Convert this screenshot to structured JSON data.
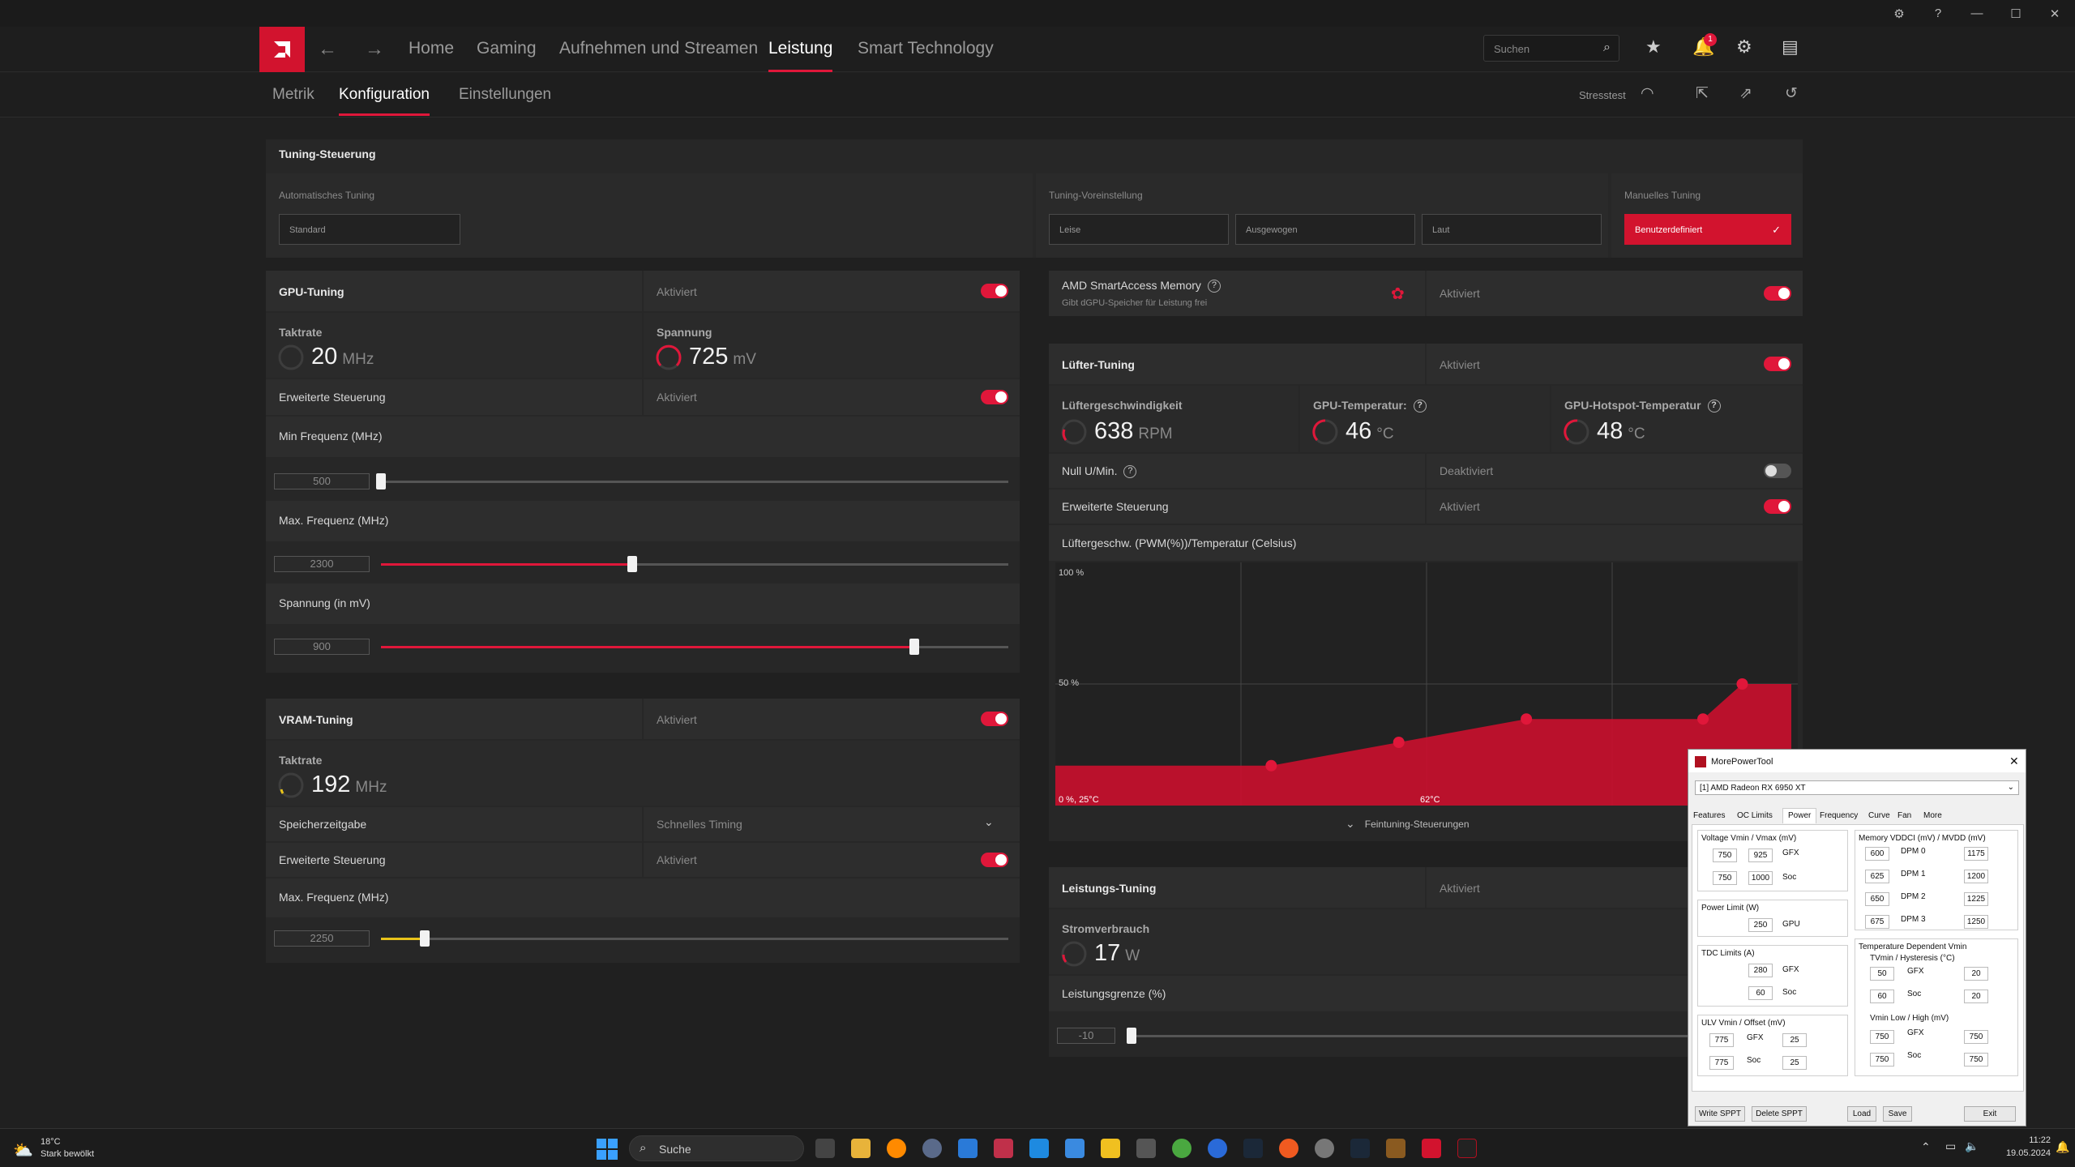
{
  "window": {
    "controls": [
      "⚙",
      "?",
      "—",
      "☐",
      "✕"
    ]
  },
  "nav": {
    "items": [
      "Home",
      "Gaming",
      "Aufnehmen und Streamen",
      "Leistung",
      "Smart Technology"
    ],
    "search_placeholder": "Suchen",
    "notification_count": "1"
  },
  "subnav": {
    "items": [
      "Metrik",
      "Konfiguration",
      "Einstellungen"
    ],
    "stresstest": "Stresstest"
  },
  "tuning_control": {
    "title": "Tuning-Steuerung",
    "auto_label": "Automatisches Tuning",
    "auto_value": "Standard",
    "preset_label": "Tuning-Voreinstellung",
    "presets": [
      "Leise",
      "Ausgewogen",
      "Laut"
    ],
    "manual_label": "Manuelles Tuning",
    "manual_value": "Benutzerdefiniert"
  },
  "gpu_tuning": {
    "title": "GPU-Tuning",
    "status": "Aktiviert",
    "clock_label": "Taktrate",
    "clock_value": "20",
    "clock_unit": "MHz",
    "voltage_label": "Spannung",
    "voltage_value": "725",
    "voltage_unit": "mV",
    "advanced_label": "Erweiterte Steuerung",
    "advanced_status": "Aktiviert",
    "min_freq_label": "Min Frequenz (MHz)",
    "min_freq": "500",
    "min_freq_fraction": 0.0,
    "max_freq_label": "Max. Frequenz (MHz)",
    "max_freq": "2300",
    "max_freq_fraction": 0.4,
    "voltage_mv_label": "Spannung (in mV)",
    "voltage_mv": "900",
    "voltage_mv_fraction": 0.85
  },
  "vram_tuning": {
    "title": "VRAM-Tuning",
    "status": "Aktiviert",
    "clock_label": "Taktrate",
    "clock_value": "192",
    "clock_unit": "MHz",
    "timing_label": "Speicherzeitgabe",
    "timing_value": "Schnelles Timing",
    "advanced_label": "Erweiterte Steuerung",
    "advanced_status": "Aktiviert",
    "max_freq_label": "Max. Frequenz (MHz)",
    "max_freq": "2250",
    "max_freq_fraction": 0.07
  },
  "sam": {
    "title": "AMD SmartAccess Memory",
    "subtitle": "Gibt dGPU-Speicher für Leistung frei",
    "status": "Aktiviert"
  },
  "fan_tuning": {
    "title": "Lüfter-Tuning",
    "status": "Aktiviert",
    "speed_label": "Lüftergeschwindigkeit",
    "speed_value": "638",
    "speed_unit": "RPM",
    "temp_label": "GPU-Temperatur:",
    "temp_value": "46",
    "temp_unit": "°C",
    "hotspot_label": "GPU-Hotspot-Temperatur",
    "hotspot_value": "48",
    "hotspot_unit": "°C",
    "zero_rpm_label": "Null U/Min.",
    "zero_rpm_status": "Deaktiviert",
    "advanced_label": "Erweiterte Steuerung",
    "advanced_status": "Aktiviert",
    "curve_title": "Lüftergeschw. (PWM(%))/Temperatur (Celsius)",
    "y_top": "100 %",
    "y_mid": "50 %",
    "x_origin": "0 %, 25°C",
    "x_mid": "62°C",
    "fine_tuning": "Feintuning-Steuerungen"
  },
  "chart_data": {
    "type": "area",
    "title": "Lüftergeschw. (PWM(%))/Temperatur (Celsius)",
    "xlabel": "",
    "ylabel": "",
    "x_unit": "°C",
    "y_unit": "%",
    "xlim": [
      25,
      100
    ],
    "ylim": [
      0,
      100
    ],
    "points": [
      {
        "x": 25,
        "y": 15
      },
      {
        "x": 40,
        "y": 15
      },
      {
        "x": 47,
        "y": 15
      },
      {
        "x": 60,
        "y": 25
      },
      {
        "x": 73,
        "y": 35
      },
      {
        "x": 91,
        "y": 35
      },
      {
        "x": 95,
        "y": 50
      },
      {
        "x": 100,
        "y": 50
      }
    ],
    "grid": true,
    "color": "#c8102e"
  },
  "power_tuning": {
    "title": "Leistungs-Tuning",
    "status": "Aktiviert",
    "power_label": "Stromverbrauch",
    "power_value": "17",
    "power_unit": "W",
    "limit_label": "Leistungsgrenze (%)",
    "limit_value": "-10",
    "limit_fraction": 0.0
  },
  "mpt": {
    "title": "MorePowerTool",
    "device": "[1] AMD Radeon RX 6950 XT",
    "tabs": [
      "Features",
      "OC Limits",
      "Power",
      "Frequency",
      "Curve",
      "Fan",
      "More"
    ],
    "voltage_title": "Voltage Vmin / Vmax (mV)",
    "v_gfx": [
      "750",
      "925"
    ],
    "v_soc": [
      "750",
      "1000"
    ],
    "power_limit_title": "Power Limit (W)",
    "power_limit": "250",
    "tdc_title": "TDC Limits (A)",
    "tdc_gfx": "280",
    "tdc_soc": "60",
    "ulv_title": "ULV Vmin / Offset (mV)",
    "ulv_gfx": [
      "775",
      "25"
    ],
    "ulv_soc": [
      "775",
      "25"
    ],
    "mem_title": "Memory VDDCI (mV) / MVDD (mV)",
    "dpm": [
      {
        "l": "DPM 0",
        "a": "600",
        "b": "1175"
      },
      {
        "l": "DPM 1",
        "a": "625",
        "b": "1200"
      },
      {
        "l": "DPM 2",
        "a": "650",
        "b": "1225"
      },
      {
        "l": "DPM 3",
        "a": "675",
        "b": "1250"
      }
    ],
    "tdv_title": "Temperature Dependent Vmin",
    "tvmin_title": "TVmin / Hysteresis (°C)",
    "tv_gfx": [
      "50",
      "20"
    ],
    "tv_soc": [
      "60",
      "20"
    ],
    "vmin_title": "Vmin Low / High (mV)",
    "vm_gfx": [
      "750",
      "750"
    ],
    "vm_soc": [
      "750",
      "750"
    ],
    "gfx": "GFX",
    "soc": "Soc",
    "gpu": "GPU",
    "buttons": [
      "Write SPPT",
      "Delete SPPT",
      "Load",
      "Save",
      "Exit"
    ]
  },
  "taskbar": {
    "temp": "18°C",
    "weather": "Stark bewölkt",
    "search": "Suche",
    "time": "11:22",
    "date": "19.05.2024"
  }
}
